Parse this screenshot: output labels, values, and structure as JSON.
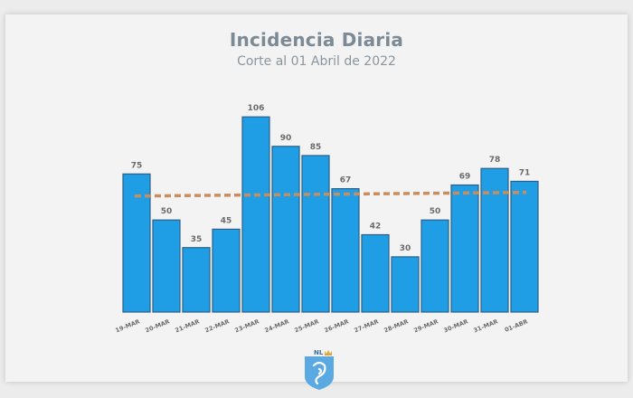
{
  "slide": {
    "title": "Incidencia Diaria",
    "subtitle": "Corte al 01 Abril de 2022",
    "logo_text": "NL"
  },
  "colors": {
    "bar_fill": "#1f9ee6",
    "bar_stroke": "#2d5f86",
    "trend": "#c98d5e",
    "label": "#6b6b6b",
    "title": "#7b8a95",
    "logo_bg": "#5aa9e2"
  },
  "chart_data": {
    "type": "bar",
    "categories": [
      "19-MAR",
      "20-MAR",
      "21-MAR",
      "22-MAR",
      "23-MAR",
      "24-MAR",
      "25-MAR",
      "26-MAR",
      "27-MAR",
      "28-MAR",
      "29-MAR",
      "30-MAR",
      "31-MAR",
      "01-ABR"
    ],
    "values": [
      75,
      50,
      35,
      45,
      106,
      90,
      85,
      67,
      42,
      30,
      50,
      69,
      78,
      71
    ],
    "trend_line": {
      "style": "dashed",
      "start_value": 63,
      "end_value": 65
    },
    "ylim": [
      0,
      112
    ],
    "grid": false,
    "legend": "none",
    "xlabel": "",
    "ylabel": ""
  }
}
